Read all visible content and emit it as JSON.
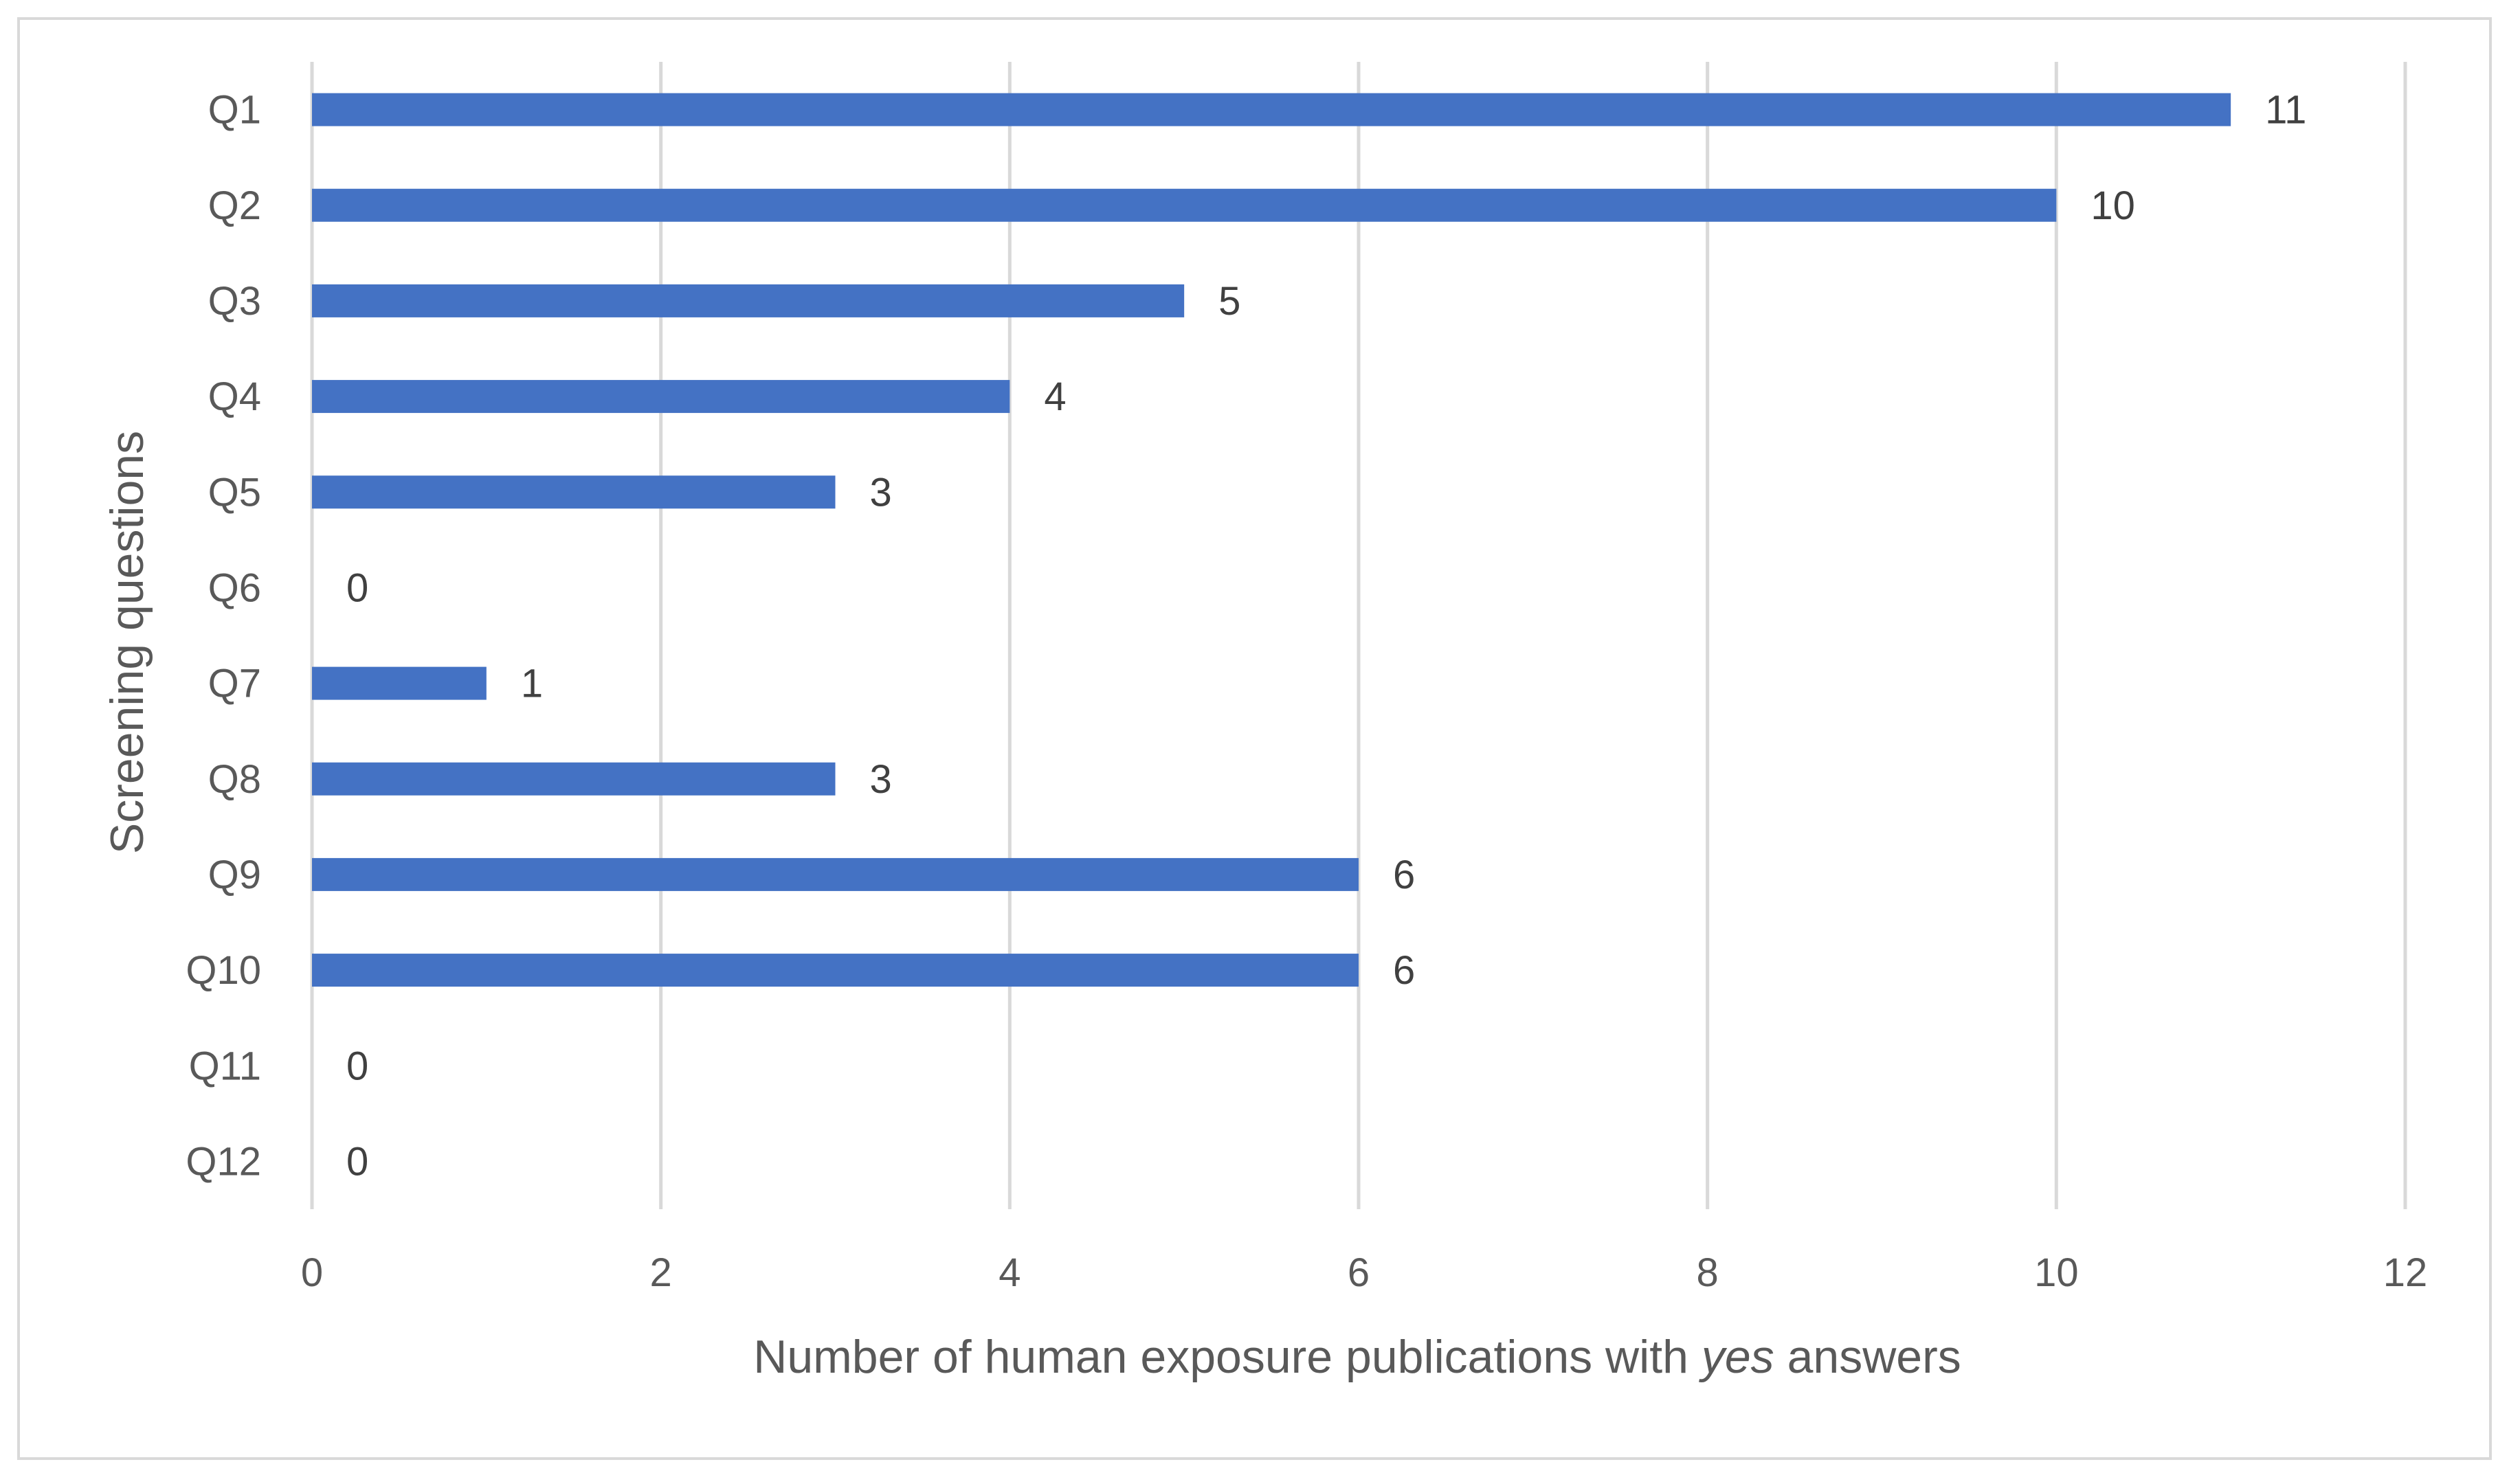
{
  "chart_data": {
    "type": "bar",
    "orientation": "horizontal",
    "categories": [
      "Q1",
      "Q2",
      "Q3",
      "Q4",
      "Q5",
      "Q6",
      "Q7",
      "Q8",
      "Q9",
      "Q10",
      "Q11",
      "Q12"
    ],
    "values": [
      11,
      10,
      5,
      4,
      3,
      0,
      1,
      3,
      6,
      6,
      0,
      0
    ],
    "xlabel_parts": [
      "Number of human exposure publications with ",
      "yes",
      " answers"
    ],
    "ylabel": "Screening questions",
    "xlim": [
      0,
      12
    ],
    "xticks": [
      0,
      2,
      4,
      6,
      8,
      10,
      12
    ],
    "grid": "vertical",
    "data_labels": true,
    "legend": "none",
    "colors": {
      "bar": "#4472c4",
      "grid": "#d9d9d9",
      "frame": "#d9d9d9",
      "text": "#595959"
    }
  }
}
